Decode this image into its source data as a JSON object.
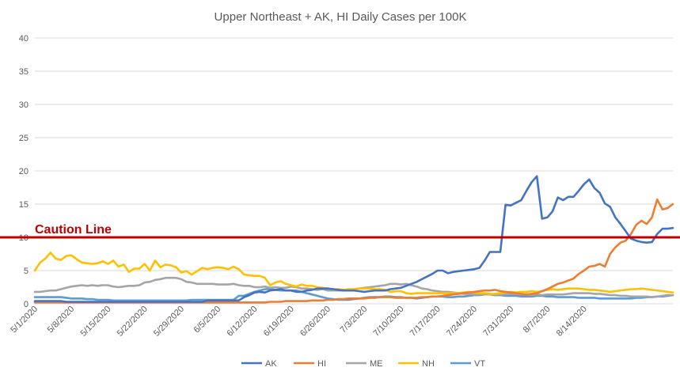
{
  "chart_data": {
    "type": "line",
    "title": "Upper Northeast + AK, HI Daily Cases per 100K",
    "xlabel": "",
    "ylabel": "",
    "ylim": [
      0,
      40
    ],
    "yticks": [
      "0",
      "5",
      "10",
      "15",
      "20",
      "25",
      "30",
      "35",
      "40"
    ],
    "grid": "horizontal",
    "legend_position": "bottom",
    "start_date": "5/1/2020",
    "x_tick_labels": [
      "5/1/2020",
      "5/8/2020",
      "5/15/2020",
      "5/22/2020",
      "5/29/2020",
      "6/5/2020",
      "6/12/2020",
      "6/19/2020",
      "6/26/2020",
      "7/3/2020",
      "7/10/2020",
      "7/17/2020",
      "7/24/2020",
      "7/31/2020",
      "8/7/2020",
      "8/14/2020"
    ],
    "reference_line": {
      "label": "Caution Line",
      "value": 10,
      "color": "#c00000"
    },
    "series": [
      {
        "name": "AK",
        "color": "#4472c4",
        "values": [
          0.4,
          0.4,
          0.4,
          0.4,
          0.4,
          0.4,
          0.3,
          0.3,
          0.3,
          0.3,
          0.3,
          0.3,
          0.3,
          0.3,
          0.3,
          0.3,
          0.3,
          0.3,
          0.3,
          0.3,
          0.3,
          0.3,
          0.3,
          0.3,
          0.3,
          0.3,
          0.3,
          0.3,
          0.3,
          0.3,
          0.3,
          0.3,
          0.3,
          0.5,
          0.5,
          0.5,
          0.5,
          0.5,
          0.5,
          0.5,
          1.0,
          1.3,
          1.7,
          1.8,
          1.7,
          2.0,
          2.1,
          2.2,
          2.0,
          2.0,
          1.8,
          1.8,
          2.0,
          2.1,
          2.3,
          2.3,
          2.3,
          2.2,
          2.1,
          2.0,
          2.0,
          2.0,
          1.9,
          1.8,
          1.9,
          2.0,
          2.0,
          2.0,
          2.2,
          2.3,
          2.4,
          2.7,
          3.0,
          3.3,
          3.7,
          4.1,
          4.5,
          5.0,
          5.0,
          4.6,
          4.8,
          4.9,
          5.0,
          5.1,
          5.2,
          5.4,
          6.5,
          7.8,
          7.8,
          7.8,
          14.9,
          14.8,
          15.2,
          15.6,
          17.0,
          18.3,
          19.2,
          12.8,
          13.0,
          13.9,
          16.0,
          15.6,
          16.1,
          16.1,
          17.0,
          18.0,
          18.7,
          17.4,
          16.7,
          15.1,
          14.6,
          13.0,
          12.0,
          10.9,
          9.8,
          9.5,
          9.3,
          9.2,
          9.3,
          10.5,
          11.3,
          11.3,
          11.4
        ]
      },
      {
        "name": "HI",
        "color": "#ed7d31",
        "values": [
          0.2,
          0.2,
          0.2,
          0.2,
          0.2,
          0.2,
          0.2,
          0.2,
          0.2,
          0.2,
          0.2,
          0.2,
          0.2,
          0.2,
          0.2,
          0.2,
          0.2,
          0.2,
          0.2,
          0.2,
          0.2,
          0.2,
          0.2,
          0.2,
          0.2,
          0.2,
          0.2,
          0.2,
          0.2,
          0.2,
          0.2,
          0.2,
          0.2,
          0.2,
          0.2,
          0.2,
          0.2,
          0.2,
          0.2,
          0.2,
          0.2,
          0.2,
          0.2,
          0.2,
          0.2,
          0.3,
          0.3,
          0.3,
          0.4,
          0.4,
          0.4,
          0.4,
          0.4,
          0.5,
          0.5,
          0.5,
          0.6,
          0.6,
          0.7,
          0.7,
          0.8,
          0.8,
          0.8,
          0.8,
          0.9,
          0.9,
          1.0,
          1.0,
          1.0,
          0.9,
          0.9,
          0.9,
          0.9,
          0.9,
          1.0,
          1.0,
          1.1,
          1.1,
          1.2,
          1.3,
          1.4,
          1.5,
          1.6,
          1.7,
          1.8,
          1.9,
          2.0,
          2.0,
          2.1,
          1.9,
          1.8,
          1.7,
          1.6,
          1.5,
          1.4,
          1.5,
          1.6,
          1.9,
          2.2,
          2.6,
          3.0,
          3.2,
          3.5,
          3.8,
          4.5,
          5.0,
          5.6,
          5.7,
          6.0,
          5.6,
          7.5,
          8.5,
          9.2,
          9.5,
          10.5,
          11.9,
          12.5,
          12.0,
          13.0,
          15.7,
          14.2,
          14.4,
          15.0
        ]
      },
      {
        "name": "ME",
        "color": "#a5a5a5",
        "values": [
          1.8,
          1.8,
          1.9,
          2.0,
          2.0,
          2.2,
          2.4,
          2.6,
          2.7,
          2.8,
          2.7,
          2.8,
          2.7,
          2.8,
          2.8,
          2.6,
          2.5,
          2.6,
          2.7,
          2.7,
          2.8,
          3.2,
          3.3,
          3.6,
          3.7,
          3.9,
          3.9,
          3.9,
          3.7,
          3.3,
          3.2,
          3.0,
          3.0,
          3.0,
          3.0,
          2.9,
          2.9,
          2.9,
          3.0,
          2.8,
          2.7,
          2.7,
          2.5,
          2.5,
          2.6,
          2.4,
          2.5,
          2.4,
          2.4,
          2.6,
          2.5,
          2.3,
          2.3,
          2.2,
          2.1,
          2.2,
          2.0,
          2.0,
          2.0,
          2.0,
          2.0,
          2.2,
          2.3,
          2.4,
          2.5,
          2.6,
          2.7,
          2.8,
          3.0,
          3.0,
          2.9,
          3.0,
          2.8,
          2.6,
          2.3,
          2.2,
          2.0,
          1.9,
          1.8,
          1.8,
          1.7,
          1.6,
          1.5,
          1.5,
          1.4,
          1.4,
          1.4,
          1.4,
          1.4,
          1.4,
          1.4,
          1.5,
          1.5,
          1.4,
          1.4,
          1.3,
          1.4,
          1.3,
          1.4,
          1.4,
          1.4,
          1.4,
          1.5,
          1.6,
          1.6,
          1.6,
          1.6,
          1.5,
          1.5,
          1.4,
          1.3,
          1.3,
          1.2,
          1.2,
          1.1,
          1.1,
          1.1,
          1.1,
          1.0,
          1.1,
          1.2,
          1.3,
          1.3
        ]
      },
      {
        "name": "NH",
        "color": "#ffc000",
        "values": [
          5.0,
          6.2,
          6.8,
          7.7,
          6.8,
          6.6,
          7.2,
          7.3,
          6.7,
          6.2,
          6.1,
          6.0,
          6.1,
          6.4,
          6.0,
          6.5,
          5.6,
          5.9,
          4.8,
          5.3,
          5.3,
          6.0,
          5.0,
          6.5,
          5.5,
          5.9,
          5.8,
          5.5,
          4.7,
          4.9,
          4.4,
          4.9,
          5.4,
          5.2,
          5.4,
          5.5,
          5.4,
          5.2,
          5.6,
          5.2,
          4.4,
          4.3,
          4.2,
          4.2,
          3.9,
          2.8,
          3.2,
          3.4,
          3.0,
          2.8,
          2.6,
          2.9,
          2.7,
          2.7,
          2.5,
          2.4,
          2.3,
          2.2,
          2.2,
          2.1,
          2.2,
          2.2,
          2.3,
          2.3,
          2.3,
          2.2,
          2.2,
          2.1,
          1.8,
          1.9,
          1.9,
          1.6,
          1.5,
          1.6,
          1.6,
          1.6,
          1.6,
          1.6,
          1.6,
          1.6,
          1.6,
          1.6,
          1.7,
          1.8,
          1.7,
          1.6,
          1.6,
          1.5,
          1.5,
          1.6,
          1.7,
          1.8,
          1.7,
          1.8,
          1.8,
          1.9,
          1.8,
          1.9,
          2.1,
          2.2,
          2.1,
          2.2,
          2.3,
          2.3,
          2.3,
          2.2,
          2.1,
          2.1,
          2.0,
          1.9,
          1.8,
          1.9,
          2.0,
          2.1,
          2.2,
          2.2,
          2.3,
          2.2,
          2.1,
          2.0,
          1.9,
          1.8,
          1.7
        ]
      },
      {
        "name": "VT",
        "color": "#5b9bd5",
        "values": [
          1.0,
          1.0,
          1.0,
          1.0,
          1.0,
          1.0,
          0.9,
          0.8,
          0.8,
          0.8,
          0.7,
          0.7,
          0.6,
          0.6,
          0.6,
          0.5,
          0.5,
          0.5,
          0.5,
          0.5,
          0.5,
          0.5,
          0.5,
          0.5,
          0.5,
          0.5,
          0.5,
          0.5,
          0.5,
          0.5,
          0.6,
          0.6,
          0.6,
          0.6,
          0.6,
          0.6,
          0.6,
          0.6,
          0.6,
          1.2,
          1.2,
          1.5,
          1.8,
          2.0,
          2.2,
          2.2,
          2.1,
          2.0,
          2.0,
          2.0,
          2.0,
          1.8,
          1.6,
          1.4,
          1.2,
          1.0,
          0.8,
          0.7,
          0.6,
          0.6,
          0.6,
          0.7,
          0.8,
          0.9,
          1.0,
          1.0,
          1.0,
          1.1,
          1.1,
          1.0,
          1.0,
          0.9,
          0.9,
          0.8,
          0.9,
          1.0,
          1.1,
          1.1,
          1.1,
          1.0,
          1.0,
          1.1,
          1.1,
          1.2,
          1.3,
          1.3,
          1.4,
          1.4,
          1.3,
          1.3,
          1.2,
          1.2,
          1.2,
          1.1,
          1.1,
          1.1,
          1.2,
          1.2,
          1.1,
          1.1,
          1.0,
          1.0,
          1.0,
          1.0,
          0.9,
          0.9,
          0.9,
          0.9,
          0.8,
          0.8,
          0.8,
          0.8,
          0.8,
          0.8,
          0.8,
          0.9,
          0.9,
          1.0,
          1.0,
          1.1,
          1.1,
          1.2,
          1.3
        ]
      }
    ]
  }
}
